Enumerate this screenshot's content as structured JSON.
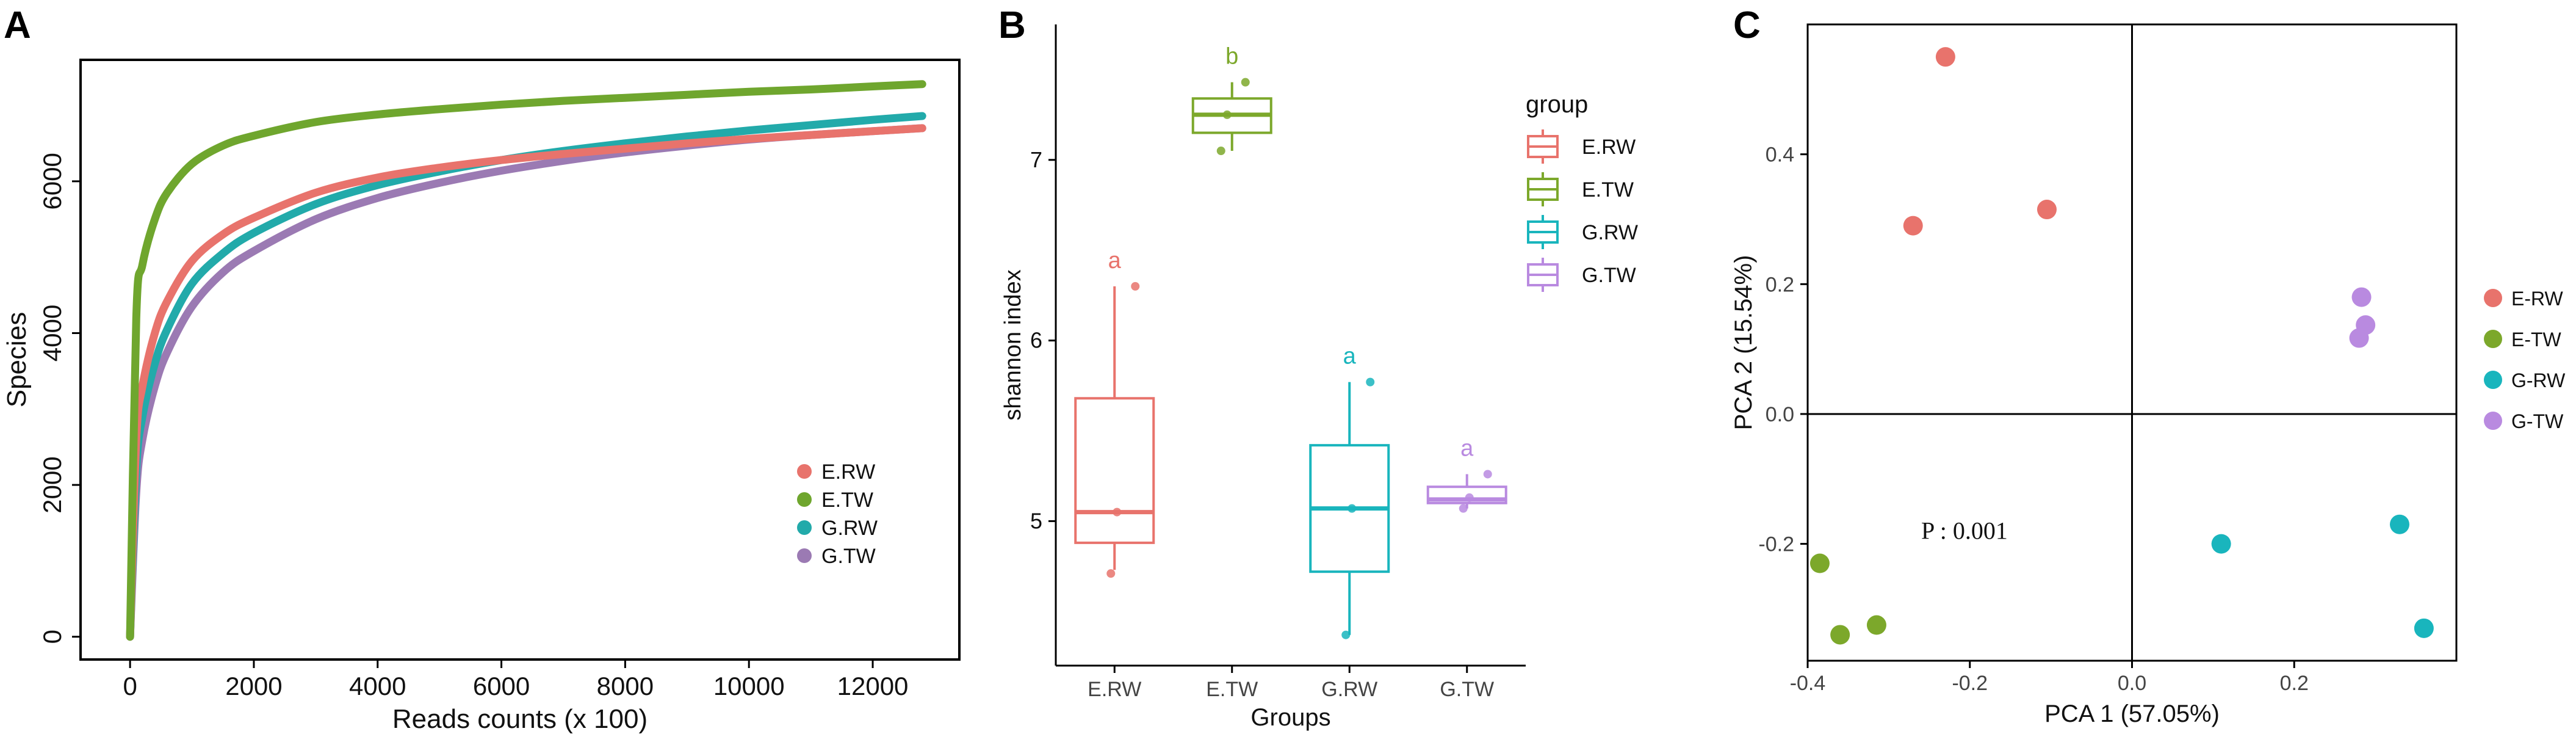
{
  "colors": {
    "ERW": "#E8736C",
    "ETW": "#7CA82B",
    "GRW": "#19B5BD",
    "GTW": "#B98AE0",
    "curve_ERW": "#E8736C",
    "curve_ETW": "#6FA62E",
    "curve_GRW": "#22AAAA",
    "curve_GTW": "#9B7AB3"
  },
  "chart_data": [
    {
      "panel": "A",
      "type": "line",
      "title": "",
      "xlabel": "Reads counts (x 100)",
      "ylabel": "Species",
      "xlim": [
        -800,
        13400
      ],
      "ylim": [
        -300,
        7600
      ],
      "xticks": [
        0,
        2000,
        4000,
        6000,
        8000,
        10000,
        12000
      ],
      "yticks": [
        0,
        2000,
        4000,
        6000
      ],
      "legend_position": "bottom-right",
      "series": [
        {
          "name": "E.RW",
          "color_key": "curve_ERW",
          "x": [
            0,
            100,
            200,
            400,
            600,
            1000,
            1500,
            2000,
            3000,
            4000,
            5000,
            6000,
            7000,
            8000,
            9000,
            10000,
            11000,
            12000,
            12800
          ],
          "y": [
            0,
            2600,
            3300,
            4000,
            4420,
            4950,
            5300,
            5520,
            5850,
            6050,
            6180,
            6280,
            6360,
            6430,
            6500,
            6560,
            6610,
            6660,
            6700
          ]
        },
        {
          "name": "E.TW",
          "color_key": "curve_ETW",
          "x": [
            0,
            100,
            200,
            400,
            600,
            1000,
            1500,
            2000,
            3000,
            4000,
            5000,
            6000,
            7000,
            8000,
            9000,
            10000,
            11000,
            12000,
            12800
          ],
          "y": [
            0,
            4200,
            4900,
            5500,
            5850,
            6230,
            6470,
            6600,
            6780,
            6880,
            6950,
            7010,
            7060,
            7100,
            7140,
            7180,
            7210,
            7250,
            7280
          ]
        },
        {
          "name": "G.RW",
          "color_key": "curve_GRW",
          "x": [
            0,
            100,
            200,
            400,
            600,
            1000,
            1500,
            2000,
            3000,
            4000,
            5000,
            6000,
            7000,
            8000,
            9000,
            10000,
            11000,
            12000,
            12800
          ],
          "y": [
            0,
            2200,
            2900,
            3600,
            4050,
            4650,
            5050,
            5320,
            5700,
            5950,
            6130,
            6280,
            6400,
            6500,
            6590,
            6670,
            6740,
            6810,
            6860
          ]
        },
        {
          "name": "G.TW",
          "color_key": "curve_GTW",
          "x": [
            0,
            100,
            200,
            400,
            600,
            1000,
            1500,
            2000,
            3000,
            4000,
            5000,
            6000,
            7000,
            8000,
            9000,
            10000,
            11000,
            12000,
            12800
          ],
          "y": [
            0,
            1900,
            2600,
            3300,
            3750,
            4350,
            4800,
            5080,
            5500,
            5780,
            5980,
            6140,
            6270,
            6380,
            6470,
            6550,
            6610,
            6660,
            6700
          ]
        }
      ]
    },
    {
      "panel": "B",
      "type": "box",
      "title": "",
      "xlabel": "Groups",
      "ylabel": "shannon index",
      "ylim": [
        4.2,
        7.75
      ],
      "yticks": [
        5,
        6,
        7
      ],
      "categories": [
        "E.RW",
        "E.TW",
        "G.RW",
        "G.TW"
      ],
      "legend_title": "group",
      "legend_position": "top-right",
      "boxes": [
        {
          "name": "E.RW",
          "color_key": "ERW",
          "lower_whisker": 4.73,
          "q1": 4.88,
          "median": 5.05,
          "q3": 5.68,
          "upper_whisker": 6.3,
          "points": [
            4.71,
            5.05,
            6.3
          ],
          "letter": "a"
        },
        {
          "name": "E.TW",
          "color_key": "ETW",
          "lower_whisker": 7.05,
          "q1": 7.15,
          "median": 7.25,
          "q3": 7.34,
          "upper_whisker": 7.43,
          "points": [
            7.05,
            7.25,
            7.43
          ],
          "letter": "b"
        },
        {
          "name": "G.RW",
          "color_key": "GRW",
          "lower_whisker": 4.37,
          "q1": 4.72,
          "median": 5.07,
          "q3": 5.42,
          "upper_whisker": 5.77,
          "points": [
            4.37,
            5.07,
            5.77
          ],
          "letter": "a"
        },
        {
          "name": "G.TW",
          "color_key": "GTW",
          "lower_whisker": 5.07,
          "q1": 5.1,
          "median": 5.12,
          "q3": 5.19,
          "upper_whisker": 5.26,
          "points": [
            5.07,
            5.13,
            5.26
          ],
          "letter": "a"
        }
      ]
    },
    {
      "panel": "C",
      "type": "scatter",
      "title": "",
      "xlabel": "PCA 1 (57.05%)",
      "ylabel": "PCA 2 (15.54%)",
      "xlim": [
        -0.4,
        0.4
      ],
      "ylim": [
        -0.38,
        0.6
      ],
      "xticks": [
        -0.4,
        -0.2,
        0.0,
        0.2
      ],
      "yticks": [
        -0.2,
        0.0,
        0.2,
        0.4
      ],
      "legend_position": "right",
      "annotation": {
        "text": "P : 0.001",
        "x": -0.26,
        "y": -0.2
      },
      "series": [
        {
          "name": "E-RW",
          "color_key": "ERW",
          "x": [
            -0.23,
            -0.27,
            -0.105
          ],
          "y": [
            0.55,
            0.29,
            0.315
          ]
        },
        {
          "name": "E-TW",
          "color_key": "ETW",
          "x": [
            -0.385,
            -0.36,
            -0.315
          ],
          "y": [
            -0.23,
            -0.34,
            -0.325
          ]
        },
        {
          "name": "G-RW",
          "color_key": "GRW",
          "x": [
            0.11,
            0.33,
            0.36
          ],
          "y": [
            -0.2,
            -0.17,
            -0.33
          ]
        },
        {
          "name": "G-TW",
          "color_key": "GTW",
          "x": [
            0.283,
            0.288,
            0.28
          ],
          "y": [
            0.18,
            0.137,
            0.117
          ]
        }
      ]
    }
  ],
  "panel_labels": [
    "A",
    "B",
    "C"
  ]
}
